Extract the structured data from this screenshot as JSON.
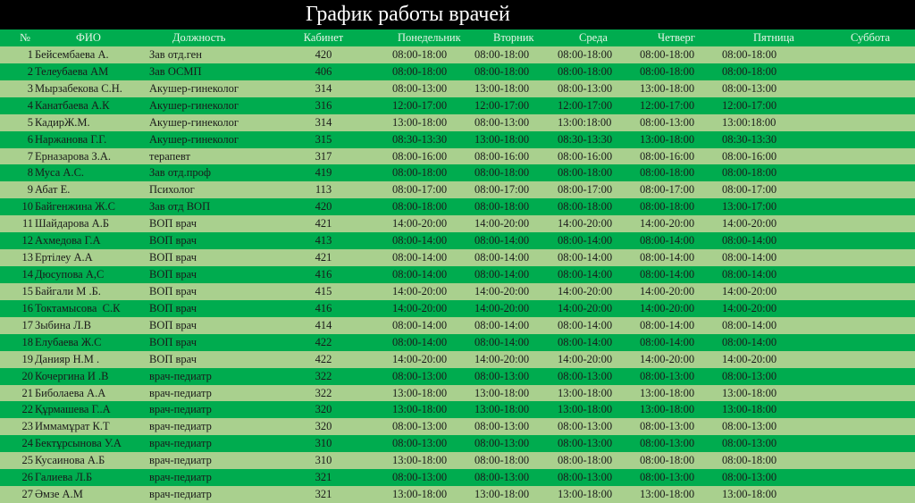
{
  "title": "График работы врачей",
  "colors": {
    "dark_row": "#00ac4f",
    "light_row": "#a9d08e",
    "title_bg": "#000000"
  },
  "headers": [
    "№",
    "ФИО",
    "Должность",
    "Кабинет",
    "Понедельник",
    "Вторник",
    "Среда",
    "Четверг",
    "Пятница",
    "Суббота"
  ],
  "rows": [
    [
      "1",
      "Бейсембаева А.",
      "Зав отд.ген",
      "420",
      "08:00-18:00",
      "08:00-18:00",
      "08:00-18:00",
      "08:00-18:00",
      "08:00-18:00",
      ""
    ],
    [
      "2",
      "Телеубаева АМ",
      "Зав ОСМП",
      "406",
      "08:00-18:00",
      "08:00-18:00",
      "08:00-18:00",
      "08:00-18:00",
      "08:00-18:00",
      ""
    ],
    [
      "3",
      "Мырзабекова С.Н.",
      "Акушер-гинеколог",
      "314",
      "08:00-13:00",
      "13:00-18:00",
      "08:00-13:00",
      "13:00-18:00",
      "08:00-13:00",
      ""
    ],
    [
      "4",
      "Канатбаева А.К",
      "Акушер-гинеколог",
      "316",
      "12:00-17:00",
      "12:00-17:00",
      "12:00-17:00",
      "12:00-17:00",
      "12:00-17:00",
      ""
    ],
    [
      "5",
      "КадирЖ.М.",
      "Акушер-гинеколог",
      "314",
      "13:00-18:00",
      "08:00-13:00",
      "13:00:18:00",
      "08:00-13:00",
      "13:00:18:00",
      ""
    ],
    [
      "6",
      "Наржанова Г.Г.",
      "Акушер-гинеколог",
      "315",
      "08:30-13:30",
      "13:00-18:00",
      "08:30-13:30",
      "13:00-18:00",
      "08:30-13:30",
      ""
    ],
    [
      "7",
      "Ерназарова З.А.",
      "терапевт",
      "317",
      "08:00-16:00",
      "08:00-16:00",
      "08:00-16:00",
      "08:00-16:00",
      "08:00-16:00",
      ""
    ],
    [
      "8",
      "Муса А.С.",
      "Зав отд.проф",
      "419",
      "08:00-18:00",
      "08:00-18:00",
      "08:00-18:00",
      "08:00-18:00",
      "08:00-18:00",
      ""
    ],
    [
      "9",
      "Абат Е.",
      "Психолог",
      "113",
      "08:00-17:00",
      "08:00-17:00",
      "08:00-17:00",
      "08:00-17:00",
      "08:00-17:00",
      ""
    ],
    [
      "10",
      "Байгенжина Ж.С",
      "Зав отд ВОП",
      "420",
      "08:00-18:00",
      "08:00-18:00",
      "08:00-18:00",
      "08:00-18:00",
      "13:00-17:00",
      ""
    ],
    [
      "11",
      "Шайдарова А.Б",
      "ВОП врач",
      "421",
      "14:00-20:00",
      "14:00-20:00",
      "14:00-20:00",
      "14:00-20:00",
      "14:00-20:00",
      ""
    ],
    [
      "12",
      "Ахмедова Г.А",
      "ВОП врач",
      "413",
      "08:00-14:00",
      "08:00-14:00",
      "08:00-14:00",
      "08:00-14:00",
      "08:00-14:00",
      ""
    ],
    [
      "13",
      "Ертілеу А.А",
      "ВОП врач",
      "421",
      "08:00-14:00",
      "08:00-14:00",
      "08:00-14:00",
      "08:00-14:00",
      "08:00-14:00",
      ""
    ],
    [
      "14",
      "Дюсупова А,С",
      "ВОП врач",
      "416",
      "08:00-14:00",
      "08:00-14:00",
      "08:00-14:00",
      "08:00-14:00",
      "08:00-14:00",
      ""
    ],
    [
      "15",
      "Байгали М .Б.",
      "ВОП врач",
      "415",
      "14:00-20:00",
      "14:00-20:00",
      "14:00-20:00",
      "14:00-20:00",
      "14:00-20:00",
      ""
    ],
    [
      "16",
      "Токтамысова  С.К",
      "ВОП врач",
      "416",
      "14:00-20:00",
      "14:00-20:00",
      "14:00-20:00",
      "14:00-20:00",
      "14:00-20:00",
      ""
    ],
    [
      "17",
      "Зыбина Л.В",
      "ВОП врач",
      "414",
      "08:00-14:00",
      "08:00-14:00",
      "08:00-14:00",
      "08:00-14:00",
      "08:00-14:00",
      ""
    ],
    [
      "18",
      "Елубаева Ж.С",
      "ВОП врач",
      "422",
      "08:00-14:00",
      "08:00-14:00",
      "08:00-14:00",
      "08:00-14:00",
      "08:00-14:00",
      ""
    ],
    [
      "19",
      "Данияр Н.М .",
      "ВОП врач",
      "422",
      "14:00-20:00",
      "14:00-20:00",
      "14:00-20:00",
      "14:00-20:00",
      "14:00-20:00",
      ""
    ],
    [
      "20",
      "Кочергина И .В",
      "врач-педиатр",
      "322",
      "08:00-13:00",
      "08:00-13:00",
      "08:00-13:00",
      "08:00-13:00",
      "08:00-13:00",
      ""
    ],
    [
      "21",
      "Биболаева А.А",
      "врач-педиатр",
      "322",
      "13:00-18:00",
      "13:00-18:00",
      "13:00-18:00",
      "13:00-18:00",
      "13:00-18:00",
      ""
    ],
    [
      "22",
      "Құрмашева Г..А",
      "врач-педиатр",
      "320",
      "13:00-18:00",
      "13:00-18:00",
      "13:00-18:00",
      "13:00-18:00",
      "13:00-18:00",
      ""
    ],
    [
      "23",
      "Иммамұрат К.Т",
      "врач-педиатр",
      "320",
      "08:00-13:00",
      "08:00-13:00",
      "08:00-13:00",
      "08:00-13:00",
      "08:00-13:00",
      ""
    ],
    [
      "24",
      "Бектұрсынова У.А",
      "врач-педиатр",
      "310",
      "08:00-13:00",
      "08:00-13:00",
      "08:00-13:00",
      "08:00-13:00",
      "08:00-13:00",
      ""
    ],
    [
      "25",
      "Кусаинова А.Б",
      "врач-педиатр",
      "310",
      "13:00-18:00",
      "08:00-18:00",
      "08:00-18:00",
      "08:00-18:00",
      "08:00-18:00",
      ""
    ],
    [
      "26",
      "Галиева Л.Б",
      "врач-педиатр",
      "321",
      "08:00-13:00",
      "08:00-13:00",
      "08:00-13:00",
      "08:00-13:00",
      "08:00-13:00",
      ""
    ],
    [
      "27",
      "Әмзе А.М",
      "врач-педиатр",
      "321",
      "13:00-18:00",
      "13:00-18:00",
      "13:00-18:00",
      "13:00-18:00",
      "13:00-18:00",
      ""
    ]
  ]
}
